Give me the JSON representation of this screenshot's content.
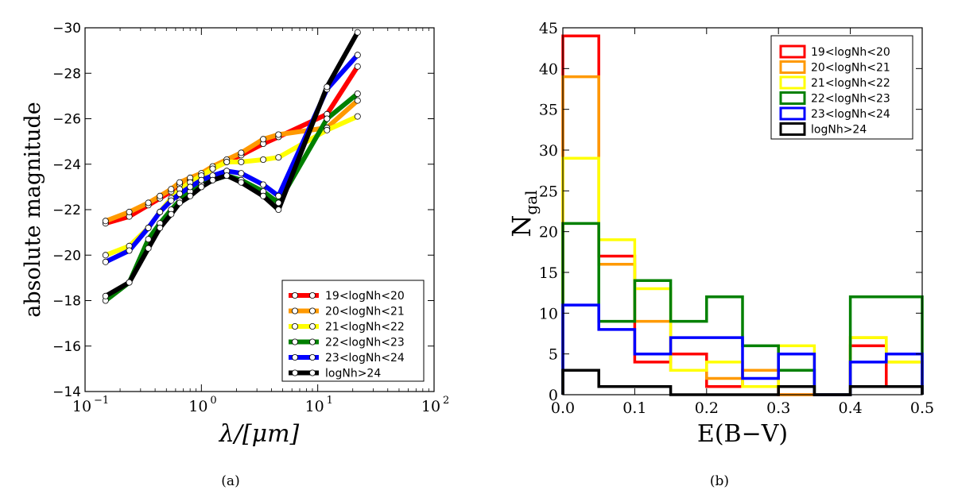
{
  "chart_data": [
    {
      "type": "line",
      "panel_label": "(a)",
      "xlabel": "λ/[μm]",
      "ylabel": "absolute magnitude",
      "x_scale": "log",
      "xlim": [
        0.1,
        100
      ],
      "ylim": [
        -14,
        -30
      ],
      "y_inverted": true,
      "x_ticks": [
        0.1,
        1,
        10,
        100
      ],
      "x_tick_labels": [
        "10",
        "10",
        "10",
        "10"
      ],
      "x_tick_exponents": [
        "−1",
        "0",
        "1",
        "2"
      ],
      "y_ticks": [
        -14,
        -16,
        -18,
        -20,
        -22,
        -24,
        -26,
        -28,
        -30
      ],
      "y_tick_labels": [
        "−14",
        "−16",
        "−18",
        "−20",
        "−22",
        "−24",
        "−26",
        "−28",
        "−30"
      ],
      "legend_position": "lower-right",
      "grid": false,
      "marker": "white-circle",
      "series": [
        {
          "name": "19<logNh<20",
          "color": "#ff0000",
          "x": [
            0.15,
            0.24,
            0.35,
            0.44,
            0.55,
            0.65,
            0.8,
            1.0,
            1.25,
            1.65,
            2.2,
            3.4,
            4.6,
            12,
            22
          ],
          "y": [
            -21.4,
            -21.7,
            -22.2,
            -22.5,
            -22.8,
            -23.1,
            -23.3,
            -23.5,
            -23.8,
            -24.1,
            -24.4,
            -24.9,
            -25.2,
            -26.2,
            -28.3
          ]
        },
        {
          "name": "20<logNh<21",
          "color": "#ff9900",
          "x": [
            0.15,
            0.24,
            0.35,
            0.44,
            0.55,
            0.65,
            0.8,
            1.0,
            1.25,
            1.65,
            2.2,
            3.4,
            4.6,
            12,
            22
          ],
          "y": [
            -21.5,
            -21.9,
            -22.3,
            -22.6,
            -22.9,
            -23.2,
            -23.4,
            -23.6,
            -23.9,
            -24.2,
            -24.5,
            -25.1,
            -25.3,
            -25.6,
            -26.8
          ]
        },
        {
          "name": "21<logNh<22",
          "color": "#ffff00",
          "x": [
            0.15,
            0.24,
            0.35,
            0.44,
            0.55,
            0.65,
            0.8,
            1.0,
            1.25,
            1.65,
            2.2,
            3.4,
            4.6,
            12,
            22
          ],
          "y": [
            -20.0,
            -20.4,
            -21.2,
            -21.9,
            -22.5,
            -22.9,
            -23.2,
            -23.5,
            -23.8,
            -24.1,
            -24.1,
            -24.2,
            -24.3,
            -25.5,
            -26.1
          ]
        },
        {
          "name": "22<logNh<23",
          "color": "#008000",
          "x": [
            0.15,
            0.24,
            0.35,
            0.44,
            0.55,
            0.65,
            0.8,
            1.0,
            1.25,
            1.65,
            2.2,
            3.4,
            4.6,
            12,
            22
          ],
          "y": [
            -18.0,
            -18.8,
            -20.7,
            -21.4,
            -22.0,
            -22.4,
            -22.8,
            -23.1,
            -23.3,
            -23.5,
            -23.3,
            -22.8,
            -22.3,
            -26.0,
            -27.1
          ]
        },
        {
          "name": "23<logNh<24",
          "color": "#0000ff",
          "x": [
            0.15,
            0.24,
            0.35,
            0.44,
            0.55,
            0.65,
            0.8,
            1.0,
            1.25,
            1.65,
            2.2,
            3.4,
            4.6,
            12,
            22
          ],
          "y": [
            -19.7,
            -20.2,
            -21.2,
            -21.9,
            -22.4,
            -22.7,
            -23.0,
            -23.3,
            -23.5,
            -23.7,
            -23.6,
            -23.1,
            -22.6,
            -27.3,
            -28.8
          ]
        },
        {
          "name": "logNh>24",
          "color": "#000000",
          "x": [
            0.15,
            0.24,
            0.35,
            0.44,
            0.55,
            0.65,
            0.8,
            1.0,
            1.25,
            1.65,
            2.2,
            3.4,
            4.6,
            12,
            22
          ],
          "y": [
            -18.2,
            -18.8,
            -20.3,
            -21.2,
            -21.8,
            -22.3,
            -22.6,
            -23.0,
            -23.3,
            -23.5,
            -23.2,
            -22.6,
            -22.0,
            -27.4,
            -29.8
          ]
        }
      ]
    },
    {
      "type": "histogram",
      "panel_label": "(b)",
      "xlabel": "E(B−V)",
      "ylabel": "N",
      "ylabel_subscript": "gal",
      "xlim": [
        0,
        0.5
      ],
      "ylim": [
        0,
        45
      ],
      "x_ticks": [
        0.0,
        0.1,
        0.2,
        0.3,
        0.4,
        0.5
      ],
      "x_tick_labels": [
        "0.0",
        "0.1",
        "0.2",
        "0.3",
        "0.4",
        "0.5"
      ],
      "y_ticks": [
        0,
        5,
        10,
        15,
        20,
        25,
        30,
        35,
        40,
        45
      ],
      "y_tick_labels": [
        "0",
        "5",
        "10",
        "15",
        "20",
        "25",
        "30",
        "35",
        "40",
        "45"
      ],
      "bin_edges": [
        0.0,
        0.05,
        0.1,
        0.15,
        0.2,
        0.25,
        0.3,
        0.35,
        0.4,
        0.45,
        0.5
      ],
      "legend_position": "top-right",
      "grid": false,
      "series": [
        {
          "name": "19<logNh<20",
          "color": "#ff0000",
          "values": [
            44,
            17,
            4,
            5,
            1,
            3,
            0,
            0,
            6,
            1
          ]
        },
        {
          "name": "20<logNh<21",
          "color": "#ff9900",
          "values": [
            39,
            16,
            9,
            3,
            2,
            3,
            0,
            0,
            7,
            4
          ]
        },
        {
          "name": "21<logNh<22",
          "color": "#ffff00",
          "values": [
            29,
            19,
            13,
            3,
            4,
            1,
            6,
            0,
            7,
            4
          ]
        },
        {
          "name": "22<logNh<23",
          "color": "#008000",
          "values": [
            21,
            9,
            14,
            9,
            12,
            6,
            3,
            0,
            12,
            12
          ]
        },
        {
          "name": "23<logNh<24",
          "color": "#0000ff",
          "values": [
            11,
            8,
            5,
            7,
            7,
            2,
            5,
            0,
            4,
            5
          ]
        },
        {
          "name": "logNh>24",
          "color": "#000000",
          "values": [
            3,
            1,
            1,
            0,
            0,
            0,
            1,
            0,
            1,
            1
          ]
        }
      ]
    }
  ]
}
